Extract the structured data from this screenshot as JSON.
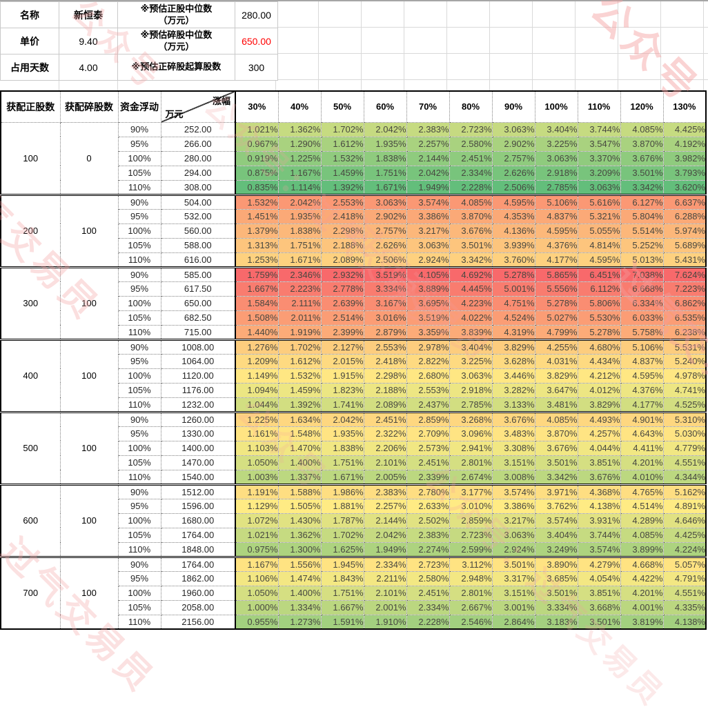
{
  "watermark": {
    "color": "#f59f9f",
    "texts": [
      "过气交易员",
      "公众号",
      "公众号：过气交易员"
    ]
  },
  "info_panel": {
    "rows": [
      {
        "label": "名称",
        "value": "新恒泰",
        "metric_label": "※预估正股中位数\n（万元）",
        "metric_value": "280.00",
        "metric_value_color": "#000000"
      },
      {
        "label": "单价",
        "value": "9.40",
        "metric_label": "※预估碎股中位数\n（万元）",
        "metric_value": "650.00",
        "metric_value_color": "#ff0000"
      },
      {
        "label": "占用天数",
        "value": "4.00",
        "metric_label": "※预估正碎股起算股数",
        "metric_value": "300",
        "metric_value_color": "#000000"
      }
    ]
  },
  "chart_data": {
    "type": "table",
    "corner_headers": [
      "获配正股数",
      "获配碎股数",
      "资金浮动"
    ],
    "diagonal_header": {
      "top_right": "涨幅",
      "bottom_left": "万元"
    },
    "pct_columns": [
      "30%",
      "40%",
      "50%",
      "60%",
      "70%",
      "80%",
      "90%",
      "100%",
      "110%",
      "120%",
      "130%"
    ],
    "heat_scale": {
      "low": "#63BE7B",
      "mid": "#FFEB84",
      "high": "#F8696B",
      "note": "per-column 3-color scale, midpoint = column median, low=green high=red"
    },
    "groups": [
      {
        "zheng": "100",
        "sui": "0",
        "rows": [
          {
            "pct": "90%",
            "amount": "252.00",
            "values": [
              1.021,
              1.362,
              1.702,
              2.042,
              2.383,
              2.723,
              3.063,
              3.404,
              3.744,
              4.085,
              4.425
            ]
          },
          {
            "pct": "95%",
            "amount": "266.00",
            "values": [
              0.967,
              1.29,
              1.612,
              1.935,
              2.257,
              2.58,
              2.902,
              3.225,
              3.547,
              3.87,
              4.192
            ]
          },
          {
            "pct": "100%",
            "amount": "280.00",
            "values": [
              0.919,
              1.225,
              1.532,
              1.838,
              2.144,
              2.451,
              2.757,
              3.063,
              3.37,
              3.676,
              3.982
            ]
          },
          {
            "pct": "105%",
            "amount": "294.00",
            "values": [
              0.875,
              1.167,
              1.459,
              1.751,
              2.042,
              2.334,
              2.626,
              2.918,
              3.209,
              3.501,
              3.793
            ]
          },
          {
            "pct": "110%",
            "amount": "308.00",
            "values": [
              0.835,
              1.114,
              1.392,
              1.671,
              1.949,
              2.228,
              2.506,
              2.785,
              3.063,
              3.342,
              3.62
            ]
          }
        ]
      },
      {
        "zheng": "200",
        "sui": "100",
        "rows": [
          {
            "pct": "90%",
            "amount": "504.00",
            "values": [
              1.532,
              2.042,
              2.553,
              3.063,
              3.574,
              4.085,
              4.595,
              5.106,
              5.616,
              6.127,
              6.637
            ]
          },
          {
            "pct": "95%",
            "amount": "532.00",
            "values": [
              1.451,
              1.935,
              2.418,
              2.902,
              3.386,
              3.87,
              4.353,
              4.837,
              5.321,
              5.804,
              6.288
            ]
          },
          {
            "pct": "100%",
            "amount": "560.00",
            "values": [
              1.379,
              1.838,
              2.298,
              2.757,
              3.217,
              3.676,
              4.136,
              4.595,
              5.055,
              5.514,
              5.974
            ]
          },
          {
            "pct": "105%",
            "amount": "588.00",
            "values": [
              1.313,
              1.751,
              2.188,
              2.626,
              3.063,
              3.501,
              3.939,
              4.376,
              4.814,
              5.252,
              5.689
            ]
          },
          {
            "pct": "110%",
            "amount": "616.00",
            "values": [
              1.253,
              1.671,
              2.089,
              2.506,
              2.924,
              3.342,
              3.76,
              4.177,
              4.595,
              5.013,
              5.431
            ]
          }
        ]
      },
      {
        "zheng": "300",
        "sui": "100",
        "rows": [
          {
            "pct": "90%",
            "amount": "585.00",
            "values": [
              1.759,
              2.346,
              2.932,
              3.519,
              4.105,
              4.692,
              5.278,
              5.865,
              6.451,
              7.038,
              7.624
            ]
          },
          {
            "pct": "95%",
            "amount": "617.50",
            "values": [
              1.667,
              2.223,
              2.778,
              3.334,
              3.889,
              4.445,
              5.001,
              5.556,
              6.112,
              6.668,
              7.223
            ]
          },
          {
            "pct": "100%",
            "amount": "650.00",
            "values": [
              1.584,
              2.111,
              2.639,
              3.167,
              3.695,
              4.223,
              4.751,
              5.278,
              5.806,
              6.334,
              6.862
            ]
          },
          {
            "pct": "105%",
            "amount": "682.50",
            "values": [
              1.508,
              2.011,
              2.514,
              3.016,
              3.519,
              4.022,
              4.524,
              5.027,
              5.53,
              6.033,
              6.535
            ]
          },
          {
            "pct": "110%",
            "amount": "715.00",
            "values": [
              1.44,
              1.919,
              2.399,
              2.879,
              3.359,
              3.839,
              4.319,
              4.799,
              5.278,
              5.758,
              6.238
            ]
          }
        ]
      },
      {
        "zheng": "400",
        "sui": "100",
        "rows": [
          {
            "pct": "90%",
            "amount": "1008.00",
            "values": [
              1.276,
              1.702,
              2.127,
              2.553,
              2.978,
              3.404,
              3.829,
              4.255,
              4.68,
              5.106,
              5.531
            ]
          },
          {
            "pct": "95%",
            "amount": "1064.00",
            "values": [
              1.209,
              1.612,
              2.015,
              2.418,
              2.822,
              3.225,
              3.628,
              4.031,
              4.434,
              4.837,
              5.24
            ]
          },
          {
            "pct": "100%",
            "amount": "1120.00",
            "values": [
              1.149,
              1.532,
              1.915,
              2.298,
              2.68,
              3.063,
              3.446,
              3.829,
              4.212,
              4.595,
              4.978
            ]
          },
          {
            "pct": "105%",
            "amount": "1176.00",
            "values": [
              1.094,
              1.459,
              1.823,
              2.188,
              2.553,
              2.918,
              3.282,
              3.647,
              4.012,
              4.376,
              4.741
            ]
          },
          {
            "pct": "110%",
            "amount": "1232.00",
            "values": [
              1.044,
              1.392,
              1.741,
              2.089,
              2.437,
              2.785,
              3.133,
              3.481,
              3.829,
              4.177,
              4.525
            ]
          }
        ]
      },
      {
        "zheng": "500",
        "sui": "100",
        "rows": [
          {
            "pct": "90%",
            "amount": "1260.00",
            "values": [
              1.225,
              1.634,
              2.042,
              2.451,
              2.859,
              3.268,
              3.676,
              4.085,
              4.493,
              4.901,
              5.31
            ]
          },
          {
            "pct": "95%",
            "amount": "1330.00",
            "values": [
              1.161,
              1.548,
              1.935,
              2.322,
              2.709,
              3.096,
              3.483,
              3.87,
              4.257,
              4.643,
              5.03
            ]
          },
          {
            "pct": "100%",
            "amount": "1400.00",
            "values": [
              1.103,
              1.47,
              1.838,
              2.206,
              2.573,
              2.941,
              3.308,
              3.676,
              4.044,
              4.411,
              4.779
            ]
          },
          {
            "pct": "105%",
            "amount": "1470.00",
            "values": [
              1.05,
              1.4,
              1.751,
              2.101,
              2.451,
              2.801,
              3.151,
              3.501,
              3.851,
              4.201,
              4.551
            ]
          },
          {
            "pct": "110%",
            "amount": "1540.00",
            "values": [
              1.003,
              1.337,
              1.671,
              2.005,
              2.339,
              2.674,
              3.008,
              3.342,
              3.676,
              4.01,
              4.344
            ]
          }
        ]
      },
      {
        "zheng": "600",
        "sui": "100",
        "rows": [
          {
            "pct": "90%",
            "amount": "1512.00",
            "values": [
              1.191,
              1.588,
              1.986,
              2.383,
              2.78,
              3.177,
              3.574,
              3.971,
              4.368,
              4.765,
              5.162
            ]
          },
          {
            "pct": "95%",
            "amount": "1596.00",
            "values": [
              1.129,
              1.505,
              1.881,
              2.257,
              2.633,
              3.01,
              3.386,
              3.762,
              4.138,
              4.514,
              4.891
            ]
          },
          {
            "pct": "100%",
            "amount": "1680.00",
            "values": [
              1.072,
              1.43,
              1.787,
              2.144,
              2.502,
              2.859,
              3.217,
              3.574,
              3.931,
              4.289,
              4.646
            ]
          },
          {
            "pct": "105%",
            "amount": "1764.00",
            "values": [
              1.021,
              1.362,
              1.702,
              2.042,
              2.383,
              2.723,
              3.063,
              3.404,
              3.744,
              4.085,
              4.425
            ]
          },
          {
            "pct": "110%",
            "amount": "1848.00",
            "values": [
              0.975,
              1.3,
              1.625,
              1.949,
              2.274,
              2.599,
              2.924,
              3.249,
              3.574,
              3.899,
              4.224
            ]
          }
        ]
      },
      {
        "zheng": "700",
        "sui": "100",
        "rows": [
          {
            "pct": "90%",
            "amount": "1764.00",
            "values": [
              1.167,
              1.556,
              1.945,
              2.334,
              2.723,
              3.112,
              3.501,
              3.89,
              4.279,
              4.668,
              5.057
            ]
          },
          {
            "pct": "95%",
            "amount": "1862.00",
            "values": [
              1.106,
              1.474,
              1.843,
              2.211,
              2.58,
              2.948,
              3.317,
              3.685,
              4.054,
              4.422,
              4.791
            ]
          },
          {
            "pct": "100%",
            "amount": "1960.00",
            "values": [
              1.05,
              1.4,
              1.751,
              2.101,
              2.451,
              2.801,
              3.151,
              3.501,
              3.851,
              4.201,
              4.551
            ]
          },
          {
            "pct": "105%",
            "amount": "2058.00",
            "values": [
              1.0,
              1.334,
              1.667,
              2.001,
              2.334,
              2.667,
              3.001,
              3.334,
              3.668,
              4.001,
              4.335
            ]
          },
          {
            "pct": "110%",
            "amount": "2156.00",
            "values": [
              0.955,
              1.273,
              1.591,
              1.91,
              2.228,
              2.546,
              2.864,
              3.183,
              3.501,
              3.819,
              4.138
            ]
          }
        ]
      }
    ]
  }
}
